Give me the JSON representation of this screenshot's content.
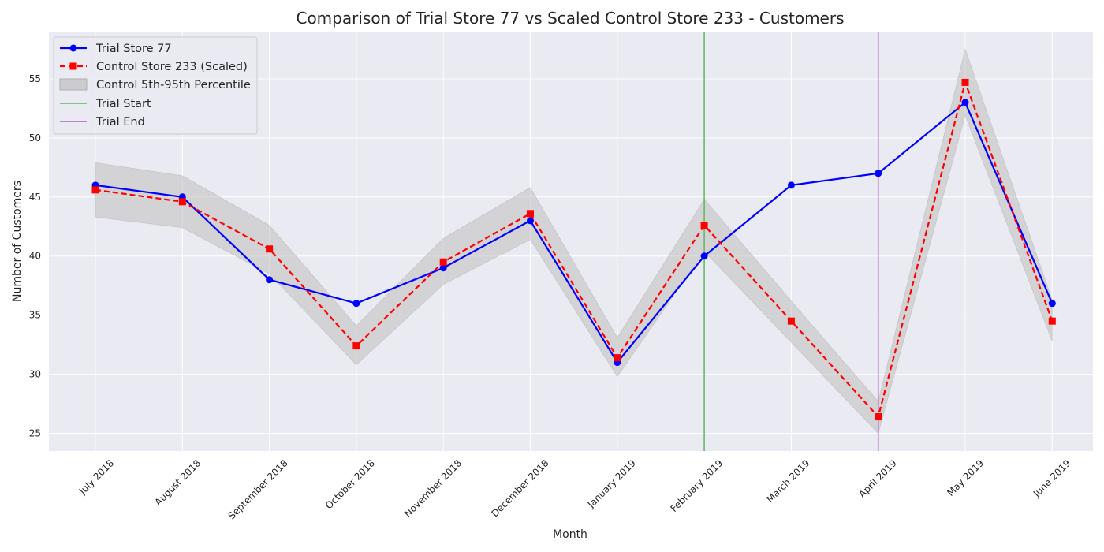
{
  "chart_data": {
    "type": "line",
    "title": "Comparison of Trial Store 77 vs Scaled Control Store 233 - Customers",
    "xlabel": "Month",
    "ylabel": "Number of Customers",
    "categories": [
      "July 2018",
      "August 2018",
      "September 2018",
      "October 2018",
      "November 2018",
      "December 2018",
      "January 2019",
      "February 2019",
      "March 2019",
      "April 2019",
      "May 2019",
      "June 2019"
    ],
    "ylim": [
      23.5,
      59.0
    ],
    "yticks": [
      25,
      30,
      35,
      40,
      45,
      50,
      55
    ],
    "grid": true,
    "legend_position": "top-left",
    "series": [
      {
        "name": "Trial Store 77",
        "color": "#0000ff",
        "style": "solid",
        "marker": "circle",
        "values": [
          46,
          45,
          38,
          36,
          39,
          43,
          31,
          40,
          46,
          47,
          53,
          36
        ]
      },
      {
        "name": "Control Store 233 (Scaled)",
        "color": "#ff0000",
        "style": "dashed",
        "marker": "square",
        "values": [
          45.6,
          44.6,
          40.6,
          32.4,
          39.5,
          43.6,
          31.4,
          42.6,
          34.5,
          26.4,
          54.7,
          34.5
        ]
      }
    ],
    "band": {
      "name": "Control 5th-95th Percentile",
      "color": "#bfbfbf",
      "lower": [
        43.3,
        42.4,
        38.5,
        30.8,
        37.6,
        41.4,
        29.8,
        40.4,
        32.7,
        25.0,
        51.9,
        32.8
      ],
      "upper": [
        47.9,
        46.8,
        42.6,
        34.1,
        41.5,
        45.8,
        33.1,
        44.8,
        36.2,
        27.7,
        57.5,
        36.3
      ]
    },
    "vlines": [
      {
        "name": "Trial Start",
        "category": "February 2019",
        "color": "#5cb85c"
      },
      {
        "name": "Trial End",
        "category": "April 2019",
        "color": "#b05cc4"
      }
    ]
  }
}
